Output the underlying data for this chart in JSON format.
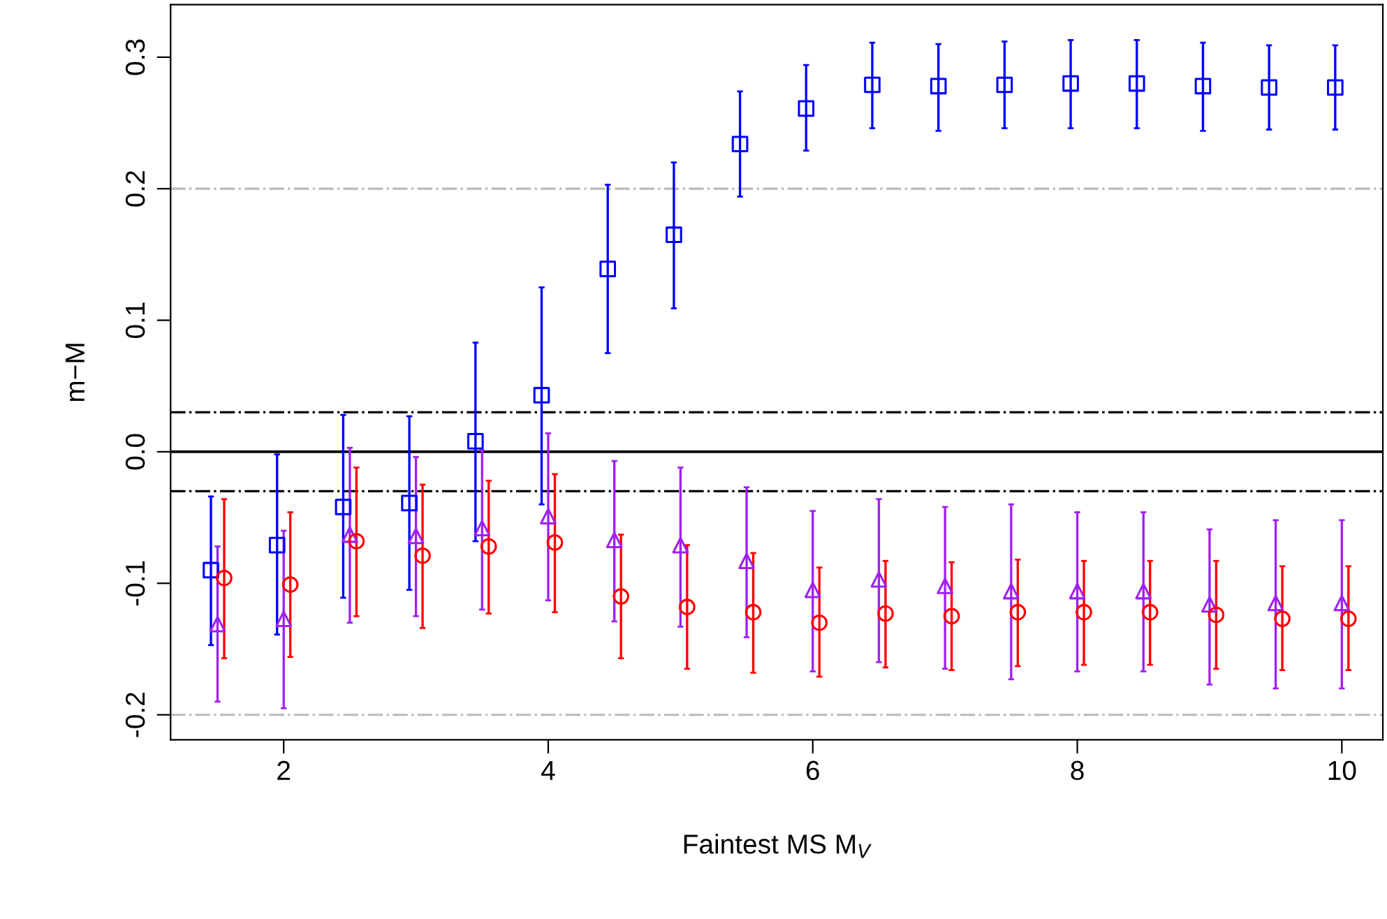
{
  "chart_data": {
    "type": "scatter",
    "xlabel": "Faintest MS M$_{V}$",
    "ylabel": "m−M",
    "xlim": [
      1.145,
      10.31
    ],
    "ylim": [
      -0.219,
      0.34
    ],
    "xticks": [
      2,
      4,
      6,
      8,
      10
    ],
    "yticks": [
      -0.2,
      -0.1,
      {
        "value": 0,
        "label": "0.0"
      },
      0.1,
      0.2,
      0.3
    ],
    "grid": false,
    "legend": false,
    "ref_lines": [
      {
        "axis": "y",
        "value": 0,
        "color": "#000000",
        "line_style": "solid"
      },
      {
        "axis": "y",
        "value": 0.03,
        "color": "#000000",
        "line_style": "dashdot"
      },
      {
        "axis": "y",
        "value": -0.03,
        "color": "#000000",
        "line_style": "dashdot"
      },
      {
        "axis": "y",
        "value": 0.2,
        "color": "#bebebe",
        "line_style": "dashdot"
      },
      {
        "axis": "y",
        "value": -0.2,
        "color": "#bebebe",
        "line_style": "dashdot"
      }
    ],
    "series": [
      {
        "color": "#0000ff",
        "marker": "square",
        "x": [
          1.45,
          1.95,
          2.45,
          2.95,
          3.45,
          3.95,
          4.45,
          4.95,
          5.45,
          5.95,
          6.45,
          6.95,
          7.45,
          7.95,
          8.45,
          8.95,
          9.45,
          9.95
        ],
        "values": [
          -0.09,
          -0.071,
          -0.042,
          -0.039,
          0.008,
          0.043,
          0.139,
          0.165,
          0.234,
          0.261,
          0.279,
          0.278,
          0.279,
          0.28,
          0.28,
          0.278,
          0.277,
          0.277
        ],
        "errors": [
          [
            -0.147,
            -0.034
          ],
          [
            -0.139,
            -0.002
          ],
          [
            -0.111,
            0.028
          ],
          [
            -0.105,
            0.027
          ],
          [
            -0.068,
            0.083
          ],
          [
            -0.04,
            0.125
          ],
          [
            0.075,
            0.203
          ],
          [
            0.109,
            0.22
          ],
          [
            0.194,
            0.274
          ],
          [
            0.229,
            0.294
          ],
          [
            0.246,
            0.311
          ],
          [
            0.244,
            0.31
          ],
          [
            0.246,
            0.312
          ],
          [
            0.246,
            0.313
          ],
          [
            0.246,
            0.313
          ],
          [
            0.244,
            0.311
          ],
          [
            0.245,
            0.309
          ],
          [
            0.245,
            0.309
          ]
        ]
      },
      {
        "color": "#a020f0",
        "marker": "triangle",
        "x": [
          1.5,
          2.0,
          2.5,
          3.0,
          3.5,
          4.0,
          4.5,
          5.0,
          5.5,
          6.0,
          6.5,
          7.0,
          7.5,
          8.0,
          8.5,
          9.0,
          9.5,
          10.0
        ],
        "values": [
          -0.131,
          -0.127,
          -0.063,
          -0.064,
          -0.058,
          -0.049,
          -0.067,
          -0.071,
          -0.083,
          -0.105,
          -0.097,
          -0.102,
          -0.106,
          -0.106,
          -0.106,
          -0.116,
          -0.115,
          -0.115
        ],
        "errors": [
          [
            -0.19,
            -0.072
          ],
          [
            -0.195,
            -0.06
          ],
          [
            -0.13,
            0.003
          ],
          [
            -0.125,
            -0.004
          ],
          [
            -0.12,
            0.001
          ],
          [
            -0.113,
            0.014
          ],
          [
            -0.129,
            -0.007
          ],
          [
            -0.133,
            -0.012
          ],
          [
            -0.141,
            -0.027
          ],
          [
            -0.167,
            -0.045
          ],
          [
            -0.16,
            -0.036
          ],
          [
            -0.165,
            -0.042
          ],
          [
            -0.173,
            -0.04
          ],
          [
            -0.167,
            -0.046
          ],
          [
            -0.167,
            -0.046
          ],
          [
            -0.177,
            -0.059
          ],
          [
            -0.18,
            -0.052
          ],
          [
            -0.18,
            -0.052
          ]
        ]
      },
      {
        "color": "#ff0000",
        "marker": "circle",
        "x": [
          1.55,
          2.05,
          2.55,
          3.05,
          3.55,
          4.05,
          4.55,
          5.05,
          5.55,
          6.05,
          6.55,
          7.05,
          7.55,
          8.05,
          8.55,
          9.05,
          9.55,
          10.05
        ],
        "values": [
          -0.096,
          -0.101,
          -0.068,
          -0.079,
          -0.072,
          -0.069,
          -0.11,
          -0.118,
          -0.122,
          -0.13,
          -0.123,
          -0.125,
          -0.122,
          -0.122,
          -0.122,
          -0.124,
          -0.127,
          -0.127
        ],
        "errors": [
          [
            -0.157,
            -0.036
          ],
          [
            -0.156,
            -0.046
          ],
          [
            -0.125,
            -0.012
          ],
          [
            -0.134,
            -0.025
          ],
          [
            -0.123,
            -0.022
          ],
          [
            -0.122,
            -0.017
          ],
          [
            -0.157,
            -0.063
          ],
          [
            -0.165,
            -0.071
          ],
          [
            -0.168,
            -0.077
          ],
          [
            -0.171,
            -0.088
          ],
          [
            -0.164,
            -0.083
          ],
          [
            -0.166,
            -0.084
          ],
          [
            -0.163,
            -0.082
          ],
          [
            -0.162,
            -0.083
          ],
          [
            -0.162,
            -0.083
          ],
          [
            -0.165,
            -0.083
          ],
          [
            -0.166,
            -0.087
          ],
          [
            -0.166,
            -0.087
          ]
        ]
      }
    ]
  }
}
